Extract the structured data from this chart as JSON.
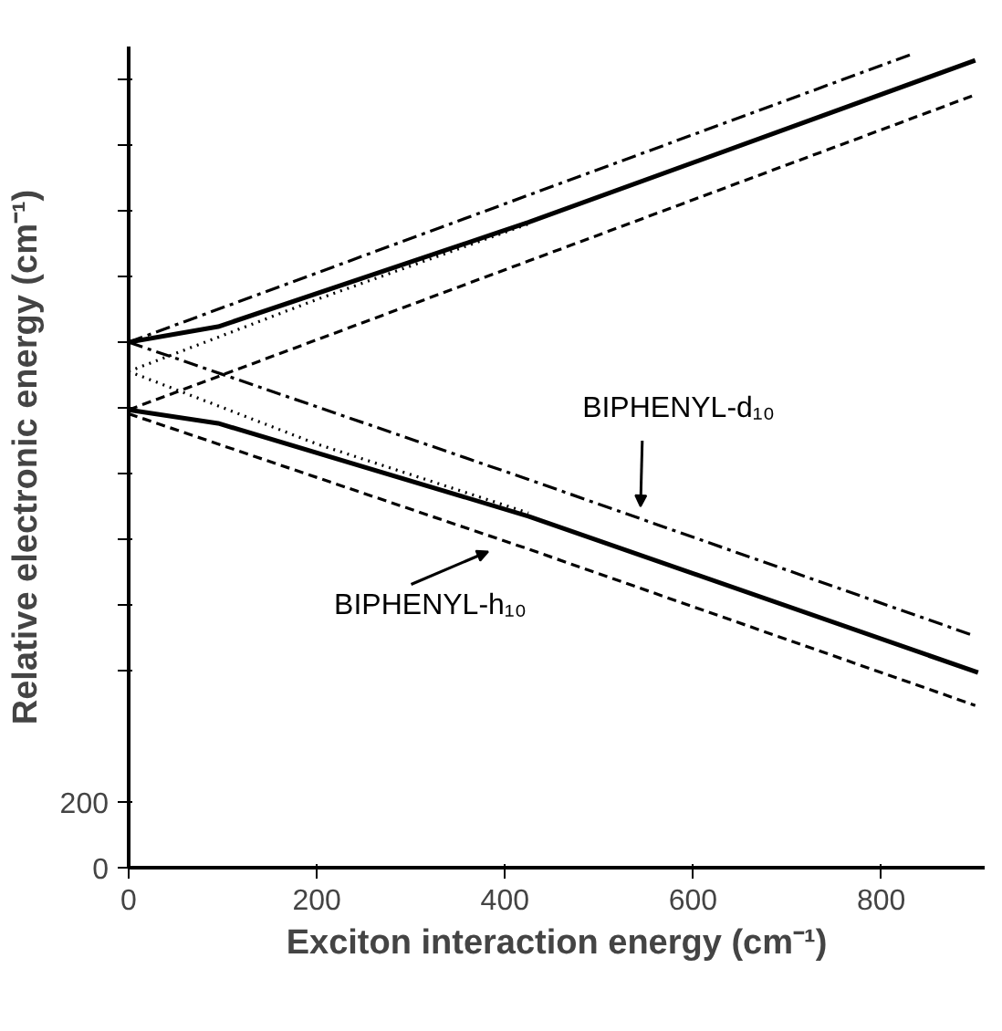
{
  "chart_data": {
    "type": "line",
    "xlabel": "Exciton interaction energy (cm⁻¹)",
    "ylabel": "Relative electronic energy (cm⁻¹)",
    "xlim": [
      0,
      910
    ],
    "ylim": [
      0,
      2500
    ],
    "xticks": [
      0,
      200,
      400,
      600,
      800
    ],
    "yticks": [
      {
        "value": 0,
        "label": "0"
      },
      {
        "value": 200,
        "label": "200"
      },
      {
        "value": 600,
        "label": null
      },
      {
        "value": 800,
        "label": null
      },
      {
        "value": 1000,
        "label": null
      },
      {
        "value": 1200,
        "label": null
      },
      {
        "value": 1400,
        "label": null
      },
      {
        "value": 1600,
        "label": null
      },
      {
        "value": 1800,
        "label": null
      },
      {
        "value": 2000,
        "label": null
      },
      {
        "value": 2200,
        "label": null
      },
      {
        "value": 2400,
        "label": null
      }
    ],
    "grid": false,
    "marker": "none",
    "series": [
      {
        "color": "#000000",
        "line_style": "dashdot",
        "x": [
          0,
          831
        ],
        "values": [
          1600,
          2475
        ]
      },
      {
        "color": "#000000",
        "line_style": "solid",
        "x": [
          0,
          95,
          425,
          900
        ],
        "values": [
          1600,
          1647,
          1965,
          2458
        ]
      },
      {
        "color": "#000000",
        "line_style": "dashed",
        "x": [
          0,
          425,
          900
        ],
        "values": [
          1394,
          1847,
          2353
        ]
      },
      {
        "color": "#000000",
        "line_style": "dotted",
        "x": [
          0,
          200,
          425
        ],
        "values": [
          1511,
          1730,
          1960
        ]
      },
      {
        "color": "#000000",
        "line_style": "dashdot",
        "x": [
          0,
          425,
          899
        ],
        "values": [
          1600,
          1182,
          706
        ]
      },
      {
        "color": "#000000",
        "line_style": "solid",
        "x": [
          0,
          95,
          425,
          903
        ],
        "values": [
          1394,
          1353,
          1070,
          594
        ]
      },
      {
        "color": "#000000",
        "line_style": "dashed",
        "x": [
          0,
          425,
          900
        ],
        "values": [
          1382,
          970,
          494
        ]
      },
      {
        "color": "#000000",
        "line_style": "dotted",
        "x": [
          0,
          200,
          425
        ],
        "values": [
          1511,
          1290,
          1080
        ]
      }
    ],
    "annotations": [
      "BIPHENYL-d₁₀",
      "BIPHENYL-h₁₀"
    ]
  }
}
